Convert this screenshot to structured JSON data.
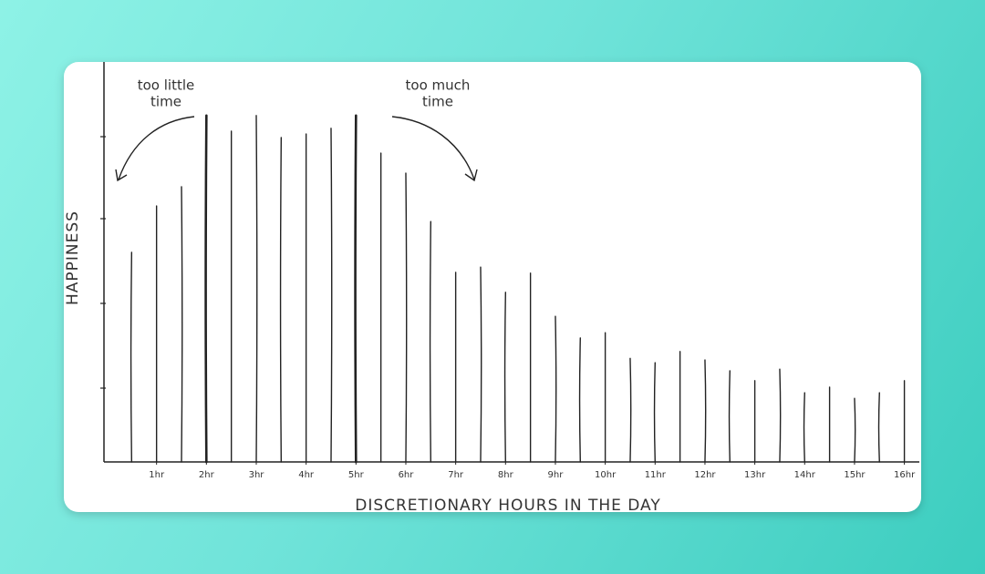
{
  "chart_data": {
    "type": "bar",
    "x": [
      0.5,
      1,
      1.5,
      2,
      2.5,
      3,
      3.5,
      4,
      4.5,
      5,
      5.5,
      6,
      6.5,
      7,
      7.5,
      8,
      8.5,
      9,
      9.5,
      10,
      10.5,
      11,
      11.5,
      12,
      12.5,
      13,
      13.5,
      14,
      14.5,
      15,
      15.5,
      16
    ],
    "values": [
      52.4,
      64,
      68.8,
      86.6,
      82.7,
      86.6,
      81.1,
      82,
      83.4,
      86.6,
      77.2,
      72.2,
      60.1,
      47.4,
      48.7,
      42.4,
      47.2,
      36.4,
      31,
      32.3,
      25.9,
      24.8,
      27.6,
      25.5,
      22.8,
      20.3,
      23.2,
      17.3,
      18.7,
      15.9,
      17.3,
      20.3
    ],
    "emphasis_x": [
      2,
      5
    ],
    "color": "#222222",
    "xlim": [
      0,
      16.3
    ],
    "ylim": [
      0,
      100
    ],
    "xticks": [
      {
        "value": 1,
        "label": "1hr"
      },
      {
        "value": 2,
        "label": "2hr"
      },
      {
        "value": 3,
        "label": "3hr"
      },
      {
        "value": 4,
        "label": "4hr"
      },
      {
        "value": 5,
        "label": "5hr"
      },
      {
        "value": 6,
        "label": "6hr"
      },
      {
        "value": 7,
        "label": "7hr"
      },
      {
        "value": 8,
        "label": "8hr"
      },
      {
        "value": 9,
        "label": "9hr"
      },
      {
        "value": 10,
        "label": "10hr"
      },
      {
        "value": 11,
        "label": "11hr"
      },
      {
        "value": 12,
        "label": "12hr"
      },
      {
        "value": 13,
        "label": "13hr"
      },
      {
        "value": 14,
        "label": "14hr"
      },
      {
        "value": 15,
        "label": "15hr"
      },
      {
        "value": 16,
        "label": "16hr"
      }
    ],
    "x_label": "DISCRETIONARY HOURS IN THE DAY",
    "y_label": "HAPPINESS",
    "annotations": [
      {
        "lines": [
          "too little",
          "time"
        ]
      },
      {
        "lines": [
          "too much",
          "time"
        ]
      }
    ]
  }
}
